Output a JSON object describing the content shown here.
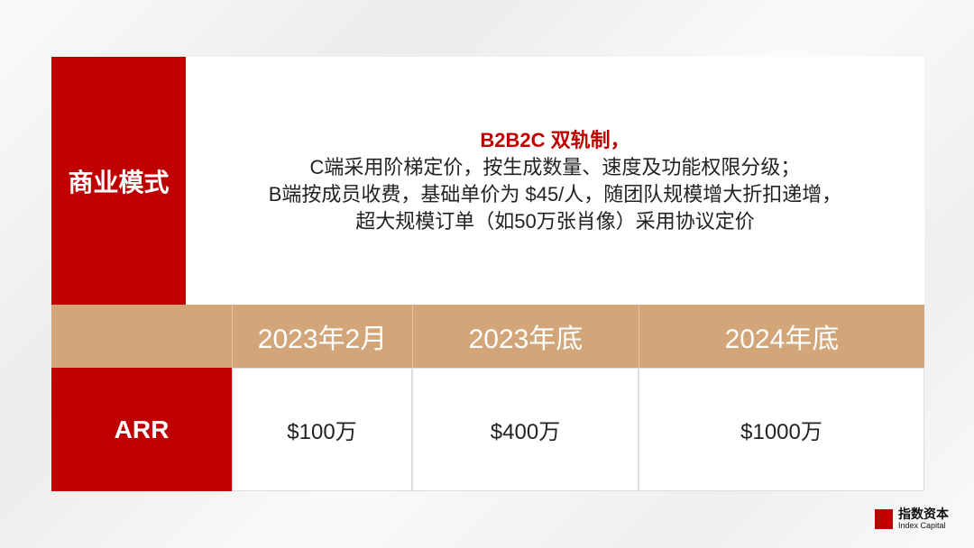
{
  "model": {
    "label": "商业模式",
    "lines": [
      "B2B2C 双轨制，",
      "C端采用阶梯定价，按生成数量、速度及功能权限分级；",
      "B端按成员收费，基础单价为 $45/人，随团队规模增大折扣递增，",
      "超大规模订单（如50万张肖像）采用协议定价"
    ]
  },
  "table": {
    "headers": [
      "",
      "2023年2月",
      "2023年底",
      "2024年底"
    ],
    "row_label": "ARR",
    "values": [
      "$100万",
      "$400万",
      "$1000万"
    ]
  },
  "logo": {
    "cn": "指数资本",
    "en": "Index Capital"
  },
  "colors": {
    "red": "#c00000",
    "tan": "#d2a679"
  }
}
